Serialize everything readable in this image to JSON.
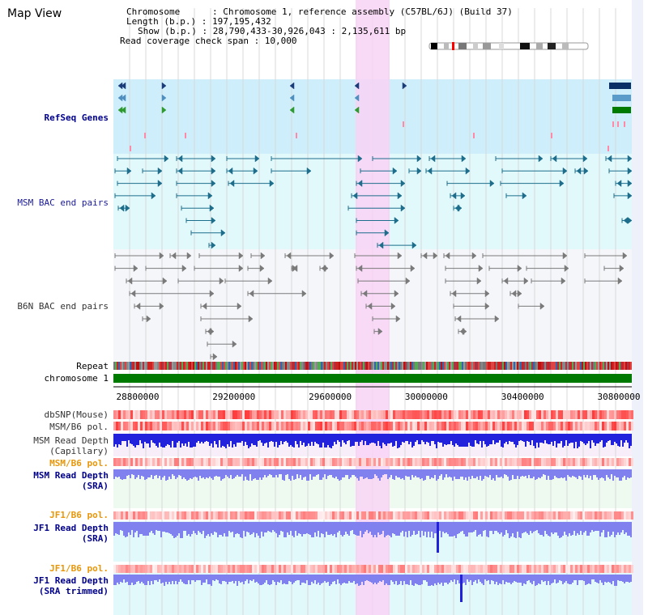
{
  "view": {
    "title": "Map View"
  },
  "header": {
    "chromosome_line": "Chromosome      : Chromosome 1, reference assembly (C57BL/6J) (Build 37)",
    "length_line": "Length (b.p.) : 197,195,432",
    "show_line": "Show (b.p.) : 28,790,433-30,926,043 : 2,135,611 bp",
    "coverage_line": "Read coverage check span : 10,000"
  },
  "tracks": {
    "refseq": "RefSeq Genes",
    "msm_bac": "MSM BAC end pairs",
    "b6n_bac": "B6N BAC end pairs",
    "repeat": "Repeat",
    "chromosome": "chromosome 1",
    "dbsnp": "dbSNP(Mouse)",
    "msm_b6_pol": "MSM/B6 pol.",
    "msm_depth_cap_1": "MSM Read Depth",
    "msm_depth_cap_2": "(Capillary)",
    "msm_b6_pol_sra": "MSM/B6 pol.",
    "msm_depth_sra_1": "MSM Read Depth",
    "msm_depth_sra_2": "(SRA)",
    "jf1_b6_pol": "JF1/B6 pol.",
    "jf1_depth_sra_1": "JF1 Read Depth",
    "jf1_depth_sra_2": "(SRA)",
    "jf1_b6_pol_trim": "JF1/B6 pol.",
    "jf1_depth_trim_1": "JF1 Read Depth",
    "jf1_depth_trim_2": "(SRA trimmed)"
  },
  "axis": {
    "ticks": [
      "28800000",
      "29200000",
      "29600000",
      "30000000",
      "30400000",
      "30800000"
    ]
  },
  "colors": {
    "refseq_bg": "#cdeefa",
    "msm_bg": "#e0f8fa",
    "highlight": "#f8d4f4",
    "chromosome": "#007a00",
    "msm_feature": "#1d6e8c",
    "b6n_feature": "#7a7a7a",
    "depth_blue": "#2222dd",
    "sra_blue": "#8080ee",
    "pol_red": "#ff5050"
  }
}
